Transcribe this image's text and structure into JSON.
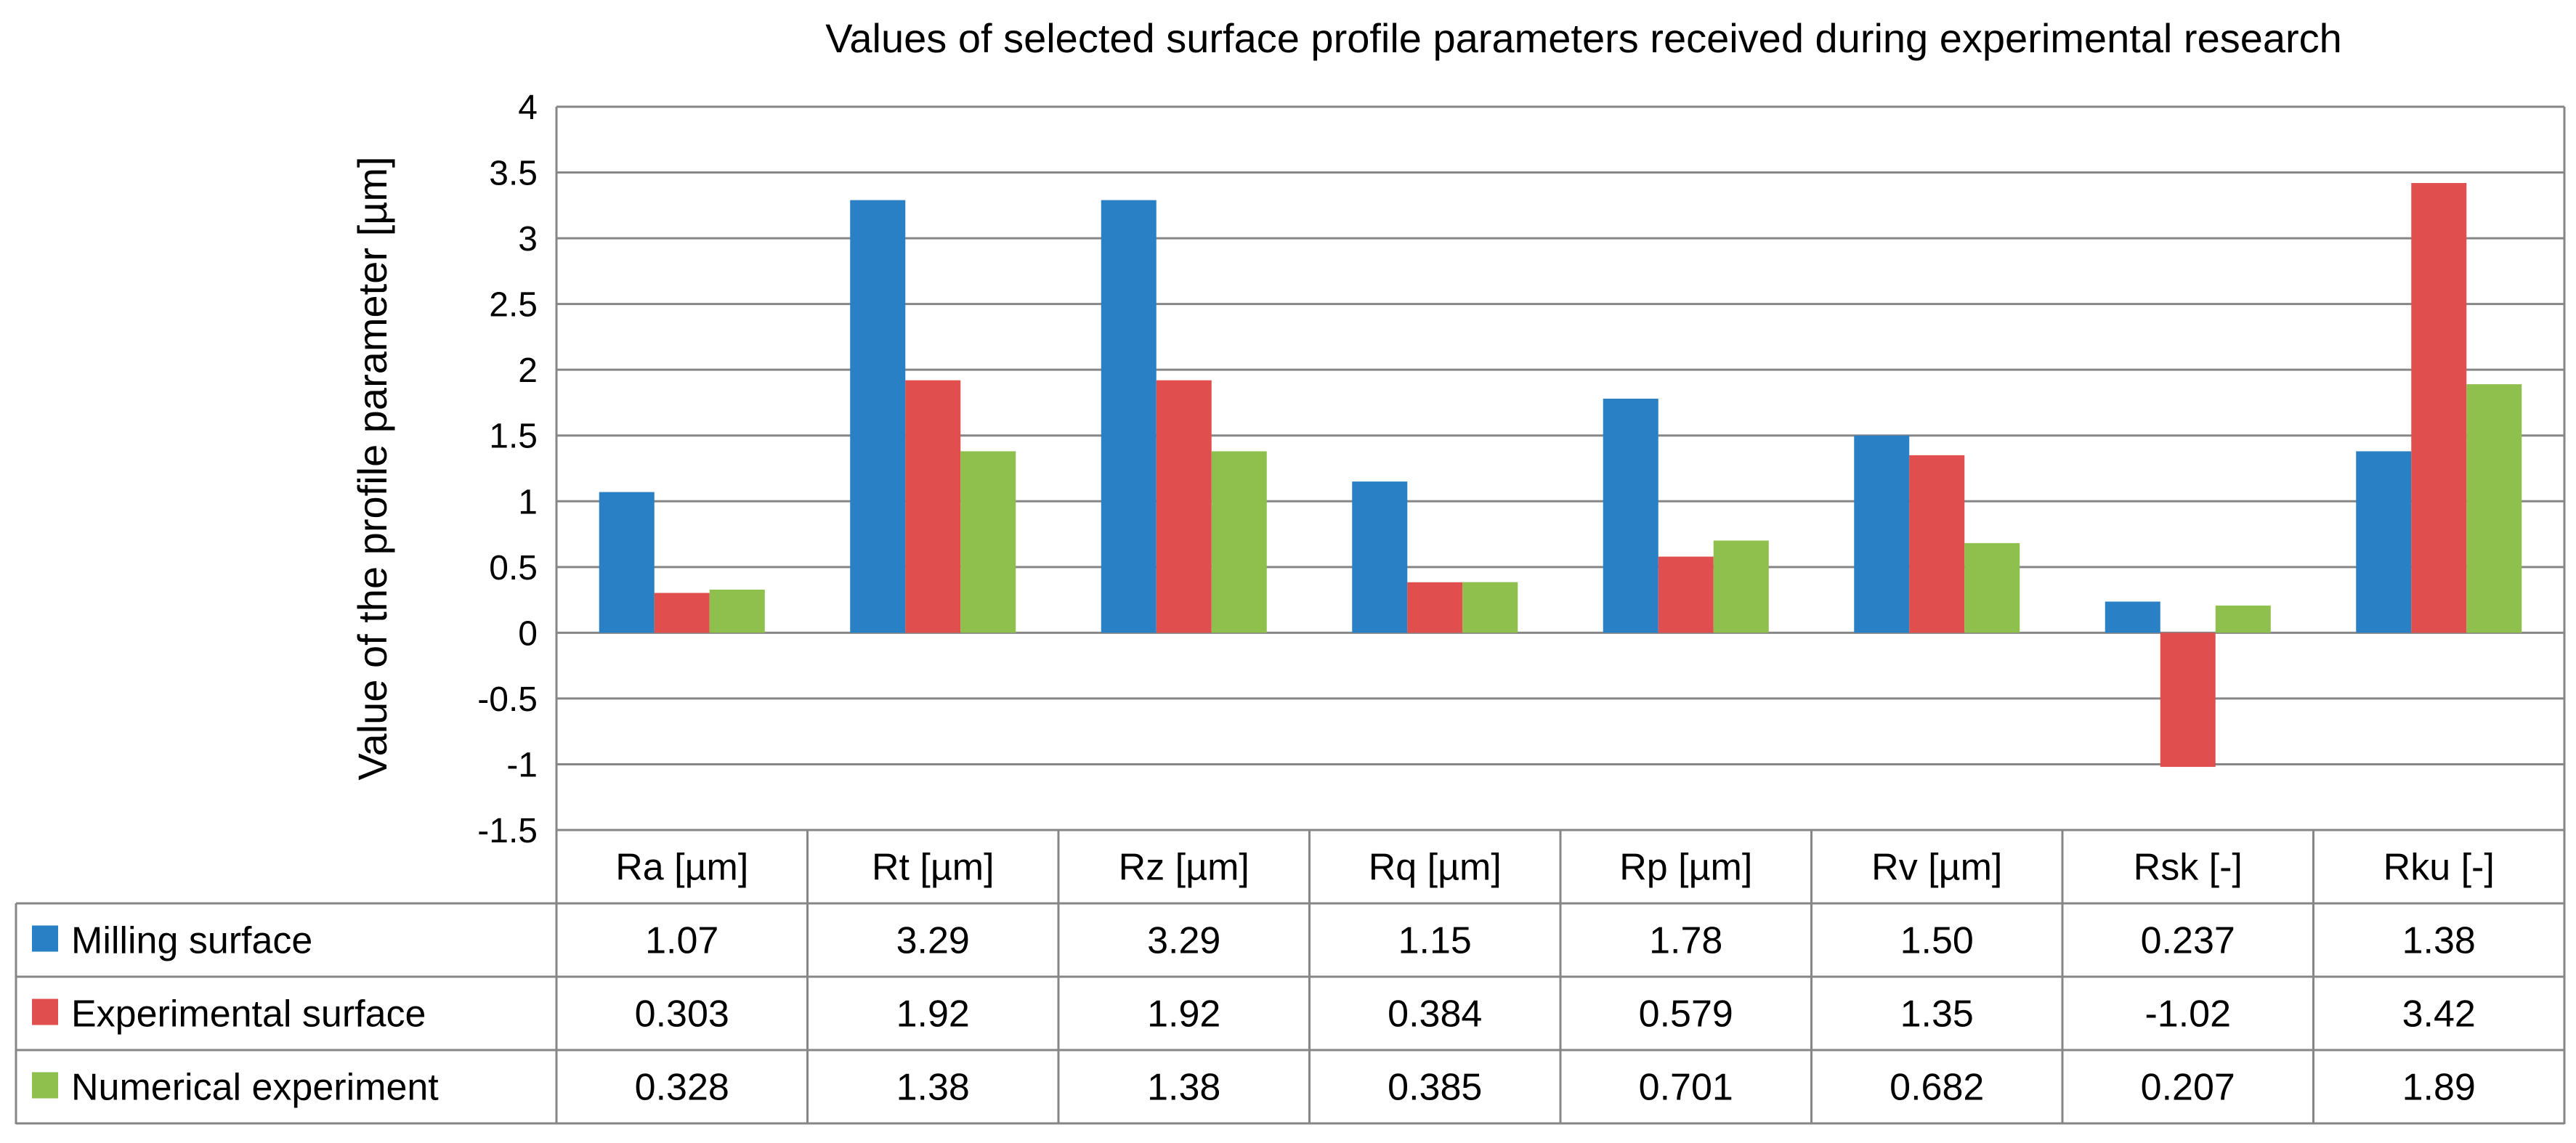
{
  "chart_data": {
    "type": "bar",
    "title": "Values of selected surface profile parameters received during experimental research",
    "ylabel": "Value of the profile parameter [µm]",
    "xlabel": "",
    "ylim": [
      -1.5,
      4
    ],
    "yticks": [
      "-1.5",
      "-1",
      "-0.5",
      "0",
      "0.5",
      "1",
      "1.5",
      "2",
      "2.5",
      "3",
      "3.5",
      "4"
    ],
    "grid": true,
    "categories": [
      "Ra [µm]",
      "Rt [µm]",
      "Rz [µm]",
      "Rq [µm]",
      "Rp [µm]",
      "Rv [µm]",
      "Rsk [-]",
      "Rku [-]"
    ],
    "series": [
      {
        "name": "Milling surface",
        "color": "#2980C4",
        "values": [
          1.07,
          3.29,
          3.29,
          1.15,
          1.78,
          1.5,
          0.237,
          1.38
        ],
        "labels": [
          "1.07",
          "3.29",
          "3.29",
          "1.15",
          "1.78",
          "1.50",
          "0.237",
          "1.38"
        ]
      },
      {
        "name": "Experimental surface",
        "color": "#E04E4E",
        "values": [
          0.303,
          1.92,
          1.92,
          0.384,
          0.579,
          1.35,
          -1.02,
          3.42
        ],
        "labels": [
          "0.303",
          "1.92",
          "1.92",
          "0.384",
          "0.579",
          "1.35",
          "-1.02",
          "3.42"
        ]
      },
      {
        "name": "Numerical experiment",
        "color": "#8FBF4D",
        "values": [
          0.328,
          1.38,
          1.38,
          0.385,
          0.701,
          0.682,
          0.207,
          1.89
        ],
        "labels": [
          "0.328",
          "1.38",
          "1.38",
          "0.385",
          "0.701",
          "0.682",
          "0.207",
          "1.89"
        ]
      }
    ]
  }
}
